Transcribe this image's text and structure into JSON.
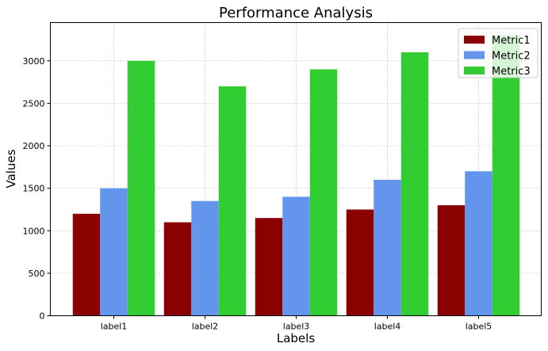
{
  "chart_data": {
    "type": "bar",
    "title": "Performance Analysis",
    "xlabel": "Labels",
    "ylabel": "Values",
    "categories": [
      "label1",
      "label2",
      "label3",
      "label4",
      "label5"
    ],
    "series": [
      {
        "name": "Metric1",
        "color": "#8b0000",
        "values": [
          1200,
          1100,
          1150,
          1250,
          1300
        ]
      },
      {
        "name": "Metric2",
        "color": "#6495ed",
        "values": [
          1500,
          1350,
          1400,
          1600,
          1700
        ]
      },
      {
        "name": "Metric3",
        "color": "#32cd32",
        "values": [
          3000,
          2700,
          2900,
          3100,
          3300
        ]
      }
    ],
    "ylim": [
      0,
      3450
    ],
    "yticks": [
      0,
      500,
      1000,
      1500,
      2000,
      2500,
      3000
    ],
    "grid": true,
    "legend_position": "top-right"
  }
}
